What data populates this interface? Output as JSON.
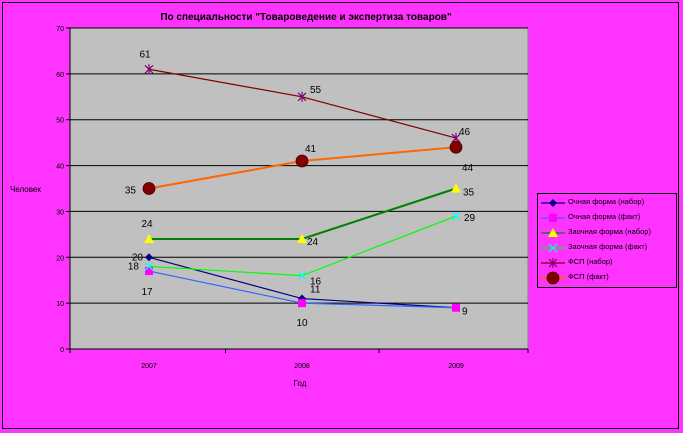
{
  "chart_data": {
    "type": "line",
    "title": "По специальности \"Товароведение и экспертиза товаров\"",
    "xlabel": "Год",
    "ylabel": "Человек",
    "categories": [
      "2007",
      "2008",
      "2009"
    ],
    "ylim": [
      0,
      70
    ],
    "yticks": [
      "0",
      "10",
      "20",
      "30",
      "40",
      "50",
      "60",
      "70"
    ],
    "grid": true,
    "legend_position": "right",
    "plot_background": "#c0c0c0",
    "series": [
      {
        "name": "Очная форма (набор)",
        "values": [
          20,
          11,
          9
        ],
        "color": "#000080",
        "marker": "diamond",
        "marker_color": "#000080",
        "labels": [
          "20",
          "11",
          "9"
        ]
      },
      {
        "name": "Очная форма (факт)",
        "values": [
          17,
          10,
          9
        ],
        "color": "#3366ff",
        "marker": "square",
        "marker_color": "#ff00ff",
        "labels": [
          "17",
          "10",
          ""
        ]
      },
      {
        "name": "Заочная форма (набор)",
        "values": [
          24,
          24,
          35
        ],
        "color": "#008000",
        "marker": "triangle",
        "marker_color": "#ffff00",
        "labels": [
          "24",
          "24",
          "35"
        ]
      },
      {
        "name": "Заочная форма (факт)",
        "values": [
          18,
          16,
          29
        ],
        "color": "#00ff00",
        "marker": "x",
        "marker_color": "#00ffff",
        "labels": [
          "18",
          "16",
          "29"
        ]
      },
      {
        "name": "ФСП (набор)",
        "values": [
          61,
          55,
          46
        ],
        "color": "#800000",
        "marker": "star",
        "marker_color": "#800080",
        "labels": [
          "61",
          "55",
          "46"
        ]
      },
      {
        "name": "ФСП (факт)",
        "values": [
          35,
          41,
          44
        ],
        "color": "#ff6600",
        "marker": "circle",
        "marker_color": "#800000",
        "labels": [
          "35",
          "41",
          "44"
        ]
      }
    ]
  }
}
